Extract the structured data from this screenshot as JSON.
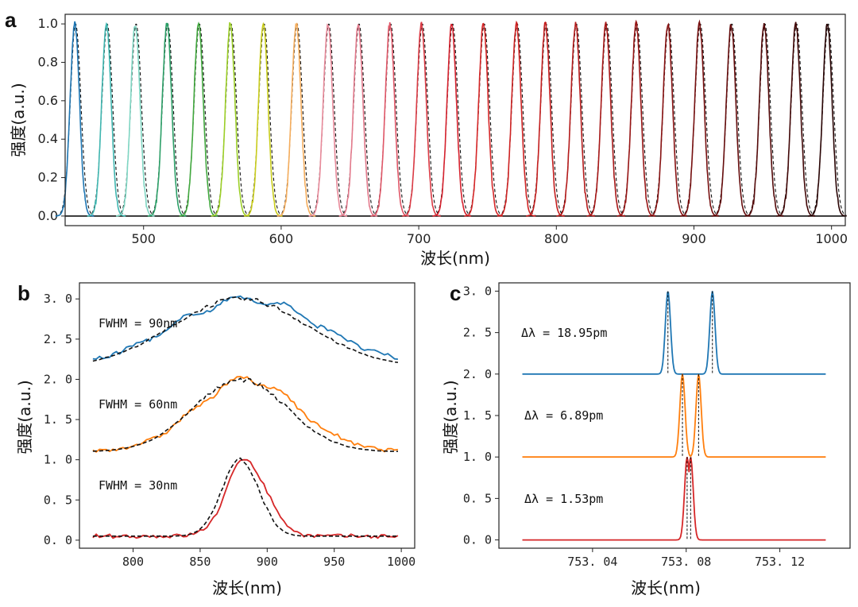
{
  "chart_data": [
    {
      "id": "a",
      "type": "line",
      "panel_label": "a",
      "xlabel": "波长(nm)",
      "ylabel": "强度(a.u.)",
      "xlim": [
        443,
        1010
      ],
      "ylim": [
        -0.05,
        1.05
      ],
      "xticks": [
        500,
        600,
        700,
        800,
        900,
        1000
      ],
      "yticks": [
        "0.0",
        "0.2",
        "0.4",
        "0.6",
        "0.8",
        "1.0"
      ],
      "series": [
        {
          "peak": 450,
          "color": "#1f77b4"
        },
        {
          "peak": 473,
          "color": "#3fb6b0"
        },
        {
          "peak": 494,
          "color": "#7fd6c3"
        },
        {
          "peak": 517,
          "color": "#2ca068"
        },
        {
          "peak": 540,
          "color": "#41a83e"
        },
        {
          "peak": 563,
          "color": "#9ccf27"
        },
        {
          "peak": 587,
          "color": "#c9cd1c"
        },
        {
          "peak": 611,
          "color": "#f5ad5c"
        },
        {
          "peak": 634,
          "color": "#e88a9a"
        },
        {
          "peak": 656,
          "color": "#e37a8c"
        },
        {
          "peak": 679,
          "color": "#e05768"
        },
        {
          "peak": 702,
          "color": "#db3b45"
        },
        {
          "peak": 724,
          "color": "#d6222e"
        },
        {
          "peak": 747,
          "color": "#d62728"
        },
        {
          "peak": 771,
          "color": "#cf2323"
        },
        {
          "peak": 792,
          "color": "#c41e1e"
        },
        {
          "peak": 814,
          "color": "#b51b1b"
        },
        {
          "peak": 836,
          "color": "#a81818"
        },
        {
          "peak": 858,
          "color": "#981515"
        },
        {
          "peak": 881,
          "color": "#881212"
        },
        {
          "peak": 904,
          "color": "#771010"
        },
        {
          "peak": 927,
          "color": "#660d0d"
        },
        {
          "peak": 951,
          "color": "#550b0b"
        },
        {
          "peak": 974,
          "color": "#420808"
        },
        {
          "peak": 997,
          "color": "#2a0505"
        }
      ]
    },
    {
      "id": "b",
      "type": "line",
      "panel_label": "b",
      "xlabel": "波长(nm)",
      "ylabel": "强度(a.u.)",
      "xlim": [
        760,
        1010
      ],
      "ylim": [
        -0.1,
        3.2
      ],
      "xticks": [
        800,
        850,
        900,
        950,
        1000
      ],
      "yticks": [
        "0.0",
        "0.5",
        "1.0",
        "1.5",
        "2.0",
        "2.5",
        "3.0"
      ],
      "series": [
        {
          "annotation": "FWHM = 90nm",
          "color": "#1f77b4",
          "offset": 2.15
        },
        {
          "annotation": "FWHM = 60nm",
          "color": "#ff7f0e",
          "offset": 1.1
        },
        {
          "annotation": "FWHM = 30nm",
          "color": "#d62728",
          "offset": 0.05
        }
      ]
    },
    {
      "id": "c",
      "type": "line",
      "panel_label": "c",
      "xlabel": "波长(nm)",
      "ylabel": "强度(a.u.)",
      "xlim": [
        753.0,
        753.15
      ],
      "ylim": [
        -0.1,
        3.1
      ],
      "xticks": [
        "753.04",
        "753.08",
        "753.12"
      ],
      "yticks": [
        "0.0",
        "0.5",
        "1.0",
        "1.5",
        "2.0",
        "2.5",
        "3.0"
      ],
      "series": [
        {
          "annotation": "Δλ = 18.95pm",
          "color": "#1f77b4",
          "offset": 2.0,
          "peaks": [
            753.0722,
            753.0912
          ]
        },
        {
          "annotation": "Δλ = 6.89pm",
          "color": "#ff7f0e",
          "offset": 1.0,
          "peaks": [
            753.0784,
            753.0853
          ]
        },
        {
          "annotation": "Δλ = 1.53pm",
          "color": "#d62728",
          "offset": 0.0,
          "peaks": [
            753.0804,
            753.0819
          ]
        }
      ]
    }
  ]
}
